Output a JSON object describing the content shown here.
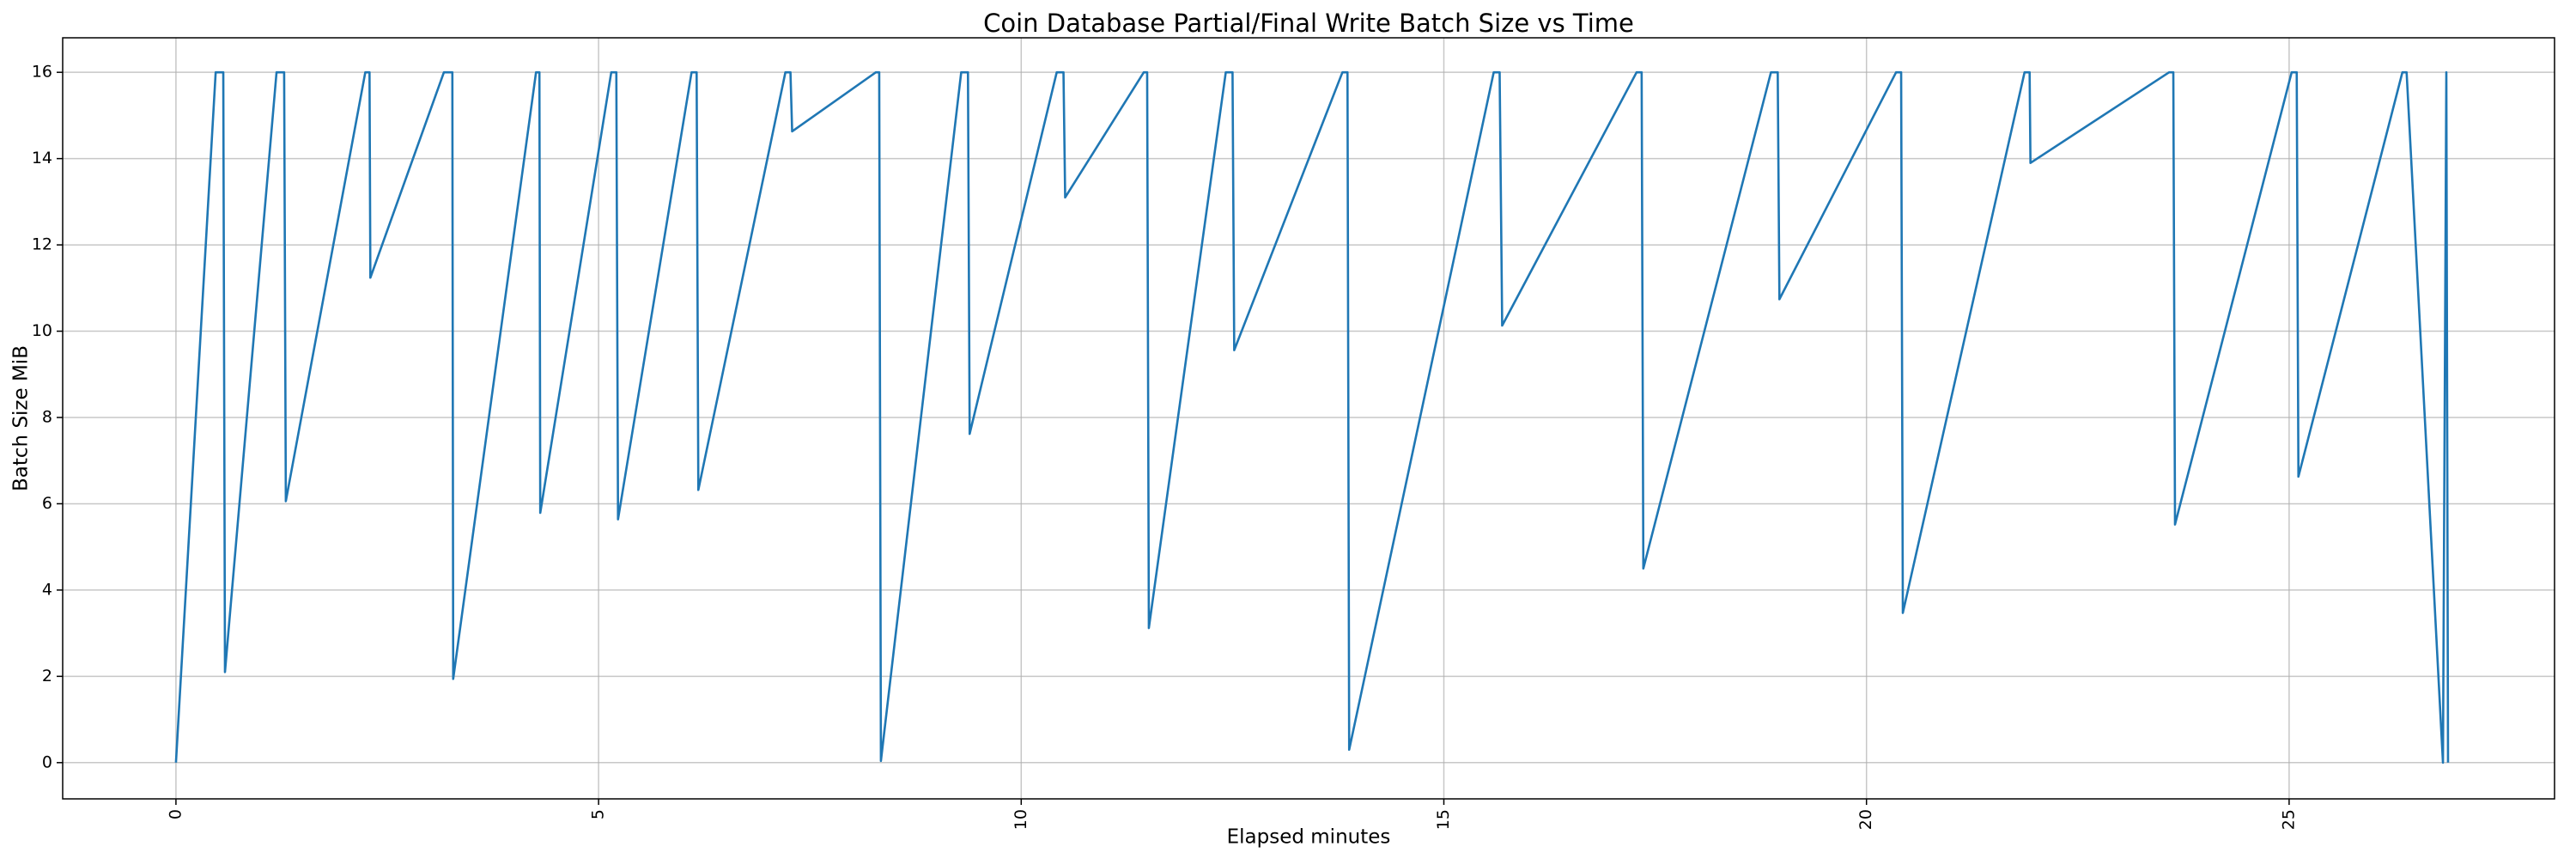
{
  "chart_data": {
    "type": "line",
    "title": "Coin Database Partial/Final Write Batch Size vs Time",
    "x_label": "Elapsed minutes",
    "y_label": "Batch Size MiB",
    "x": [
      0,
      0.47,
      0.56,
      0.58,
      1.19,
      1.28,
      1.3,
      2.24,
      2.29,
      2.3,
      3.17,
      3.27,
      3.28,
      4.26,
      4.3,
      4.31,
      5.15,
      5.21,
      5.23,
      6.1,
      6.16,
      6.18,
      7.21,
      7.27,
      7.29,
      8.28,
      8.32,
      8.34,
      9.29,
      9.37,
      9.39,
      10.42,
      10.5,
      10.52,
      11.45,
      11.49,
      11.51,
      12.42,
      12.5,
      12.52,
      13.8,
      13.86,
      13.88,
      15.59,
      15.66,
      15.69,
      17.28,
      17.34,
      17.36,
      18.87,
      18.95,
      18.97,
      20.35,
      20.41,
      20.43,
      21.87,
      21.93,
      21.94,
      23.58,
      23.63,
      23.65,
      25.03,
      25.09,
      25.11,
      26.34,
      26.39,
      26.82,
      26.86,
      26.88
    ],
    "values": [
      0,
      16,
      16,
      2.1,
      16,
      16,
      6.06,
      16,
      16,
      11.24,
      16,
      16,
      1.94,
      16,
      16,
      5.79,
      16,
      16,
      5.64,
      16,
      16,
      6.32,
      16,
      16,
      14.63,
      16,
      16,
      0.04,
      16,
      16,
      7.62,
      16,
      16,
      13.1,
      16,
      16,
      3.12,
      16,
      16,
      9.56,
      16,
      16,
      0.3,
      16,
      16,
      10.13,
      16,
      16,
      4.5,
      16,
      16,
      10.74,
      16,
      16,
      3.47,
      16,
      16,
      13.9,
      16,
      16,
      5.52,
      16,
      16,
      6.63,
      16,
      16,
      0,
      16,
      0
    ],
    "color": "#1f77b4",
    "xlim": [
      -1.34,
      28.14
    ],
    "xticks": [
      0,
      5,
      10,
      15,
      20,
      25
    ],
    "ylim": [
      -0.84,
      16.8
    ],
    "yticks": [
      0,
      2,
      4,
      6,
      8,
      10,
      12,
      14,
      16
    ],
    "grid": true
  }
}
